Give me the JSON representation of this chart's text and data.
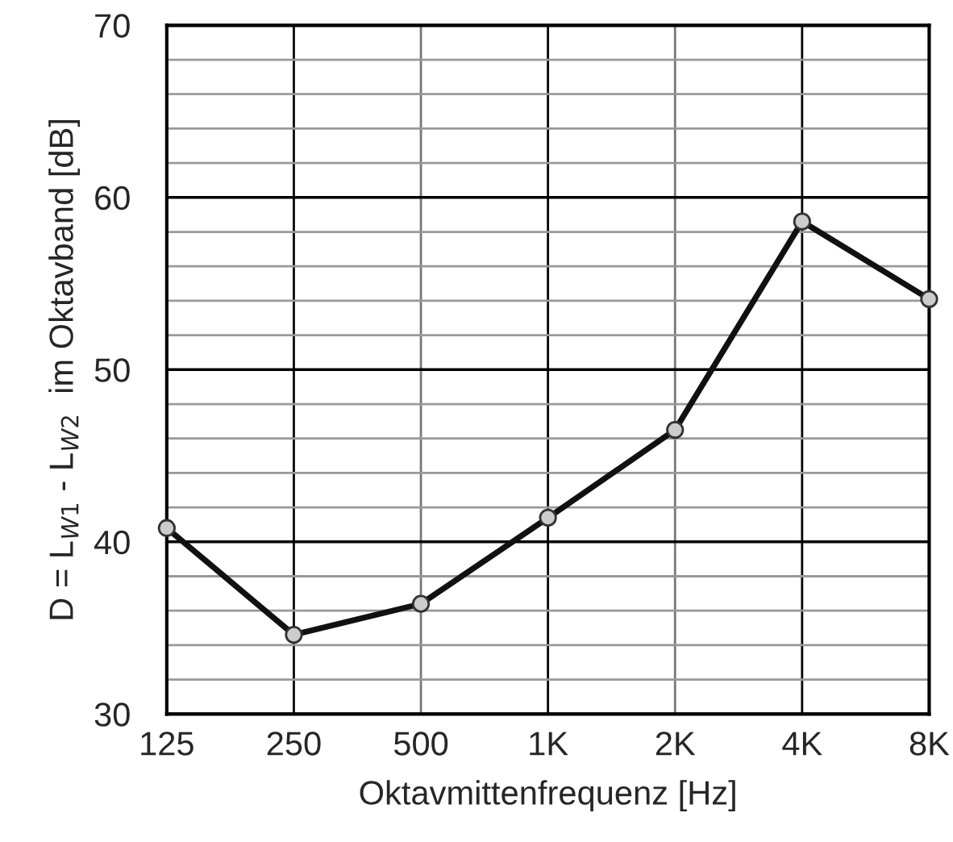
{
  "chart_data": {
    "type": "line",
    "categories": [
      "125",
      "250",
      "500",
      "1K",
      "2K",
      "4K",
      "8K"
    ],
    "series": [
      {
        "color": "#111111",
        "values": [
          40.8,
          34.6,
          36.4,
          41.4,
          46.5,
          58.6,
          54.1
        ]
      }
    ],
    "xlabel": "Oktavmittenfrequenz [Hz]",
    "ylabel": "D = L$_{W1}$ - L$_{W2}$  im Oktavband [dB]",
    "ylim": [
      30,
      70
    ],
    "yticks": [
      30,
      {
        "value": 32,
        "label": null
      },
      {
        "value": 34,
        "label": null
      },
      {
        "value": 36,
        "label": null
      },
      {
        "value": 38,
        "label": null
      },
      40,
      {
        "value": 42,
        "label": null
      },
      {
        "value": 44,
        "label": null
      },
      {
        "value": 46,
        "label": null
      },
      {
        "value": 48,
        "label": null
      },
      50,
      {
        "value": 52,
        "label": null
      },
      {
        "value": 54,
        "label": null
      },
      {
        "value": 56,
        "label": null
      },
      {
        "value": 58,
        "label": null
      },
      60,
      {
        "value": 62,
        "label": null
      },
      {
        "value": 64,
        "label": null
      },
      {
        "value": 66,
        "label": null
      },
      {
        "value": 68,
        "label": null
      },
      70
    ],
    "grid": true,
    "marker": "circle",
    "line_style": "solid",
    "legend": false
  }
}
